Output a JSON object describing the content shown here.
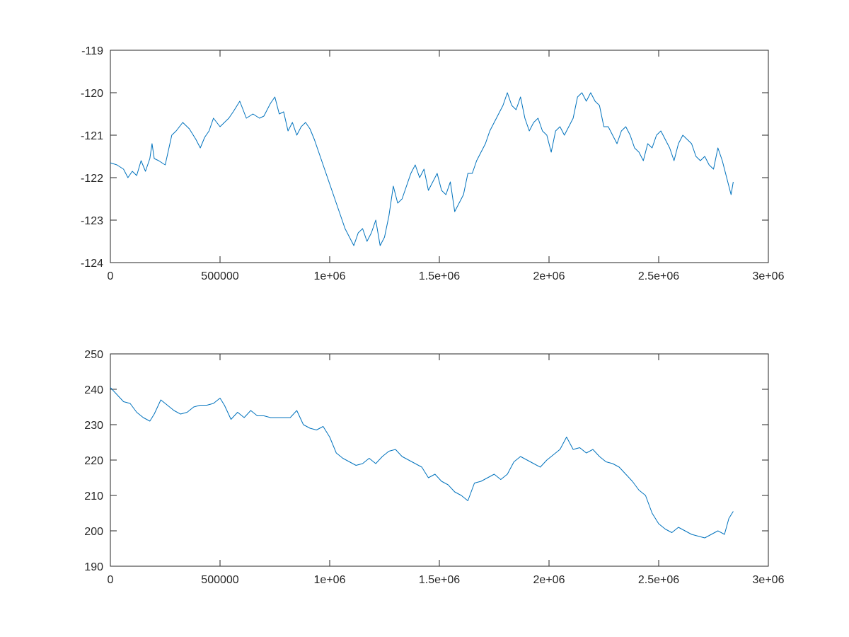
{
  "chart_data": [
    {
      "type": "line",
      "title": "",
      "xlabel": "",
      "ylabel": "",
      "xlim": [
        0,
        3000000
      ],
      "ylim": [
        -124,
        -119
      ],
      "grid": false,
      "xticks": [
        0,
        500000,
        1000000,
        1500000,
        2000000,
        2500000,
        3000000
      ],
      "xtick_labels": [
        "0",
        "500000",
        "1e+06",
        "1.5e+06",
        "2e+06",
        "2.5e+06",
        "3e+06"
      ],
      "yticks": [
        -124,
        -123,
        -122,
        -121,
        -120,
        -119
      ],
      "ytick_labels": [
        "-124",
        "-123",
        "-122",
        "-121",
        "-120",
        "-119"
      ],
      "series": [
        {
          "color": "#0072BD",
          "x": [
            0,
            30000,
            60000,
            80000,
            100000,
            120000,
            140000,
            160000,
            180000,
            190000,
            200000,
            220000,
            250000,
            280000,
            300000,
            330000,
            360000,
            390000,
            410000,
            430000,
            450000,
            470000,
            500000,
            520000,
            540000,
            560000,
            590000,
            620000,
            650000,
            680000,
            700000,
            730000,
            750000,
            770000,
            790000,
            810000,
            830000,
            850000,
            870000,
            890000,
            910000,
            930000,
            950000,
            970000,
            990000,
            1010000,
            1030000,
            1050000,
            1070000,
            1090000,
            1110000,
            1130000,
            1150000,
            1170000,
            1190000,
            1210000,
            1230000,
            1250000,
            1270000,
            1290000,
            1310000,
            1330000,
            1350000,
            1370000,
            1390000,
            1410000,
            1430000,
            1450000,
            1470000,
            1490000,
            1510000,
            1530000,
            1550000,
            1570000,
            1590000,
            1610000,
            1630000,
            1650000,
            1670000,
            1690000,
            1710000,
            1730000,
            1750000,
            1770000,
            1790000,
            1810000,
            1830000,
            1850000,
            1870000,
            1890000,
            1910000,
            1930000,
            1950000,
            1970000,
            1990000,
            2010000,
            2030000,
            2050000,
            2070000,
            2090000,
            2110000,
            2130000,
            2150000,
            2170000,
            2190000,
            2210000,
            2230000,
            2250000,
            2270000,
            2290000,
            2310000,
            2330000,
            2350000,
            2370000,
            2390000,
            2410000,
            2430000,
            2450000,
            2470000,
            2490000,
            2510000,
            2530000,
            2550000,
            2570000,
            2590000,
            2610000,
            2630000,
            2650000,
            2670000,
            2690000,
            2710000,
            2730000,
            2750000,
            2770000,
            2790000,
            2810000,
            2830000,
            2840000
          ],
          "y": [
            -121.65,
            -121.7,
            -121.8,
            -122.0,
            -121.85,
            -121.95,
            -121.6,
            -121.85,
            -121.55,
            -121.2,
            -121.55,
            -121.6,
            -121.7,
            -121.0,
            -120.9,
            -120.7,
            -120.85,
            -121.1,
            -121.3,
            -121.05,
            -120.9,
            -120.6,
            -120.8,
            -120.7,
            -120.6,
            -120.45,
            -120.2,
            -120.6,
            -120.5,
            -120.6,
            -120.55,
            -120.25,
            -120.1,
            -120.5,
            -120.45,
            -120.9,
            -120.7,
            -121.0,
            -120.8,
            -120.7,
            -120.85,
            -121.1,
            -121.4,
            -121.7,
            -122.0,
            -122.3,
            -122.6,
            -122.9,
            -123.2,
            -123.4,
            -123.6,
            -123.3,
            -123.2,
            -123.5,
            -123.3,
            -123.0,
            -123.6,
            -123.4,
            -122.9,
            -122.2,
            -122.6,
            -122.5,
            -122.2,
            -121.9,
            -121.7,
            -122.0,
            -121.8,
            -122.3,
            -122.1,
            -121.9,
            -122.3,
            -122.4,
            -122.1,
            -122.8,
            -122.6,
            -122.4,
            -121.9,
            -121.9,
            -121.6,
            -121.4,
            -121.2,
            -120.9,
            -120.7,
            -120.5,
            -120.3,
            -120.0,
            -120.3,
            -120.4,
            -120.1,
            -120.6,
            -120.9,
            -120.7,
            -120.6,
            -120.9,
            -121.0,
            -121.4,
            -120.9,
            -120.8,
            -121.0,
            -120.8,
            -120.6,
            -120.1,
            -120.0,
            -120.2,
            -120.0,
            -120.2,
            -120.3,
            -120.8,
            -120.8,
            -121.0,
            -121.2,
            -120.9,
            -120.8,
            -121.0,
            -121.3,
            -121.4,
            -121.6,
            -121.2,
            -121.3,
            -121.0,
            -120.9,
            -121.1,
            -121.3,
            -121.6,
            -121.2,
            -121.0,
            -121.1,
            -121.2,
            -121.5,
            -121.6,
            -121.5,
            -121.7,
            -121.8,
            -121.3,
            -121.6,
            -122.0,
            -122.4,
            -122.1
          ]
        }
      ]
    },
    {
      "type": "line",
      "title": "",
      "xlabel": "",
      "ylabel": "",
      "xlim": [
        0,
        3000000
      ],
      "ylim": [
        190,
        250
      ],
      "grid": false,
      "xticks": [
        0,
        500000,
        1000000,
        1500000,
        2000000,
        2500000,
        3000000
      ],
      "xtick_labels": [
        "0",
        "500000",
        "1e+06",
        "1.5e+06",
        "2e+06",
        "2.5e+06",
        "3e+06"
      ],
      "yticks": [
        190,
        200,
        210,
        220,
        230,
        240,
        250
      ],
      "ytick_labels": [
        "190",
        "200",
        "210",
        "220",
        "230",
        "240",
        "250"
      ],
      "series": [
        {
          "color": "#0072BD",
          "x": [
            0,
            30000,
            60000,
            90000,
            120000,
            150000,
            180000,
            200000,
            230000,
            260000,
            290000,
            320000,
            350000,
            380000,
            410000,
            440000,
            470000,
            500000,
            520000,
            550000,
            580000,
            610000,
            640000,
            670000,
            700000,
            730000,
            760000,
            790000,
            820000,
            850000,
            880000,
            910000,
            940000,
            970000,
            1000000,
            1030000,
            1060000,
            1090000,
            1120000,
            1150000,
            1180000,
            1210000,
            1240000,
            1270000,
            1300000,
            1330000,
            1360000,
            1390000,
            1420000,
            1450000,
            1480000,
            1510000,
            1540000,
            1570000,
            1600000,
            1630000,
            1660000,
            1690000,
            1720000,
            1750000,
            1780000,
            1810000,
            1840000,
            1870000,
            1900000,
            1930000,
            1960000,
            1990000,
            2020000,
            2050000,
            2080000,
            2110000,
            2140000,
            2170000,
            2200000,
            2230000,
            2260000,
            2290000,
            2320000,
            2350000,
            2380000,
            2410000,
            2440000,
            2470000,
            2500000,
            2530000,
            2560000,
            2590000,
            2620000,
            2650000,
            2680000,
            2710000,
            2740000,
            2770000,
            2800000,
            2820000,
            2840000
          ],
          "y": [
            240.5,
            238.5,
            236.5,
            236.0,
            233.5,
            232.0,
            231.0,
            233.0,
            237.0,
            235.5,
            234.0,
            233.0,
            233.5,
            235.0,
            235.5,
            235.5,
            236.0,
            237.5,
            235.5,
            231.5,
            233.5,
            232.0,
            234.0,
            232.5,
            232.5,
            232.0,
            232.0,
            232.0,
            232.0,
            234.0,
            230.0,
            229.0,
            228.5,
            229.5,
            226.5,
            222.0,
            220.5,
            219.5,
            218.5,
            219.0,
            220.5,
            219.0,
            221.0,
            222.5,
            223.0,
            221.0,
            220.0,
            219.0,
            218.0,
            215.0,
            216.0,
            214.0,
            213.0,
            211.0,
            210.0,
            208.5,
            213.5,
            214.0,
            215.0,
            216.0,
            214.5,
            216.0,
            219.5,
            221.0,
            220.0,
            219.0,
            218.0,
            220.0,
            221.5,
            223.0,
            226.5,
            223.0,
            223.5,
            222.0,
            223.0,
            221.0,
            219.5,
            219.0,
            218.0,
            216.0,
            214.0,
            211.5,
            210.0,
            205.0,
            202.0,
            200.5,
            199.5,
            201.0,
            200.0,
            199.0,
            198.5,
            198.0,
            199.0,
            200.0,
            199.0,
            203.5,
            205.5
          ]
        }
      ]
    }
  ]
}
